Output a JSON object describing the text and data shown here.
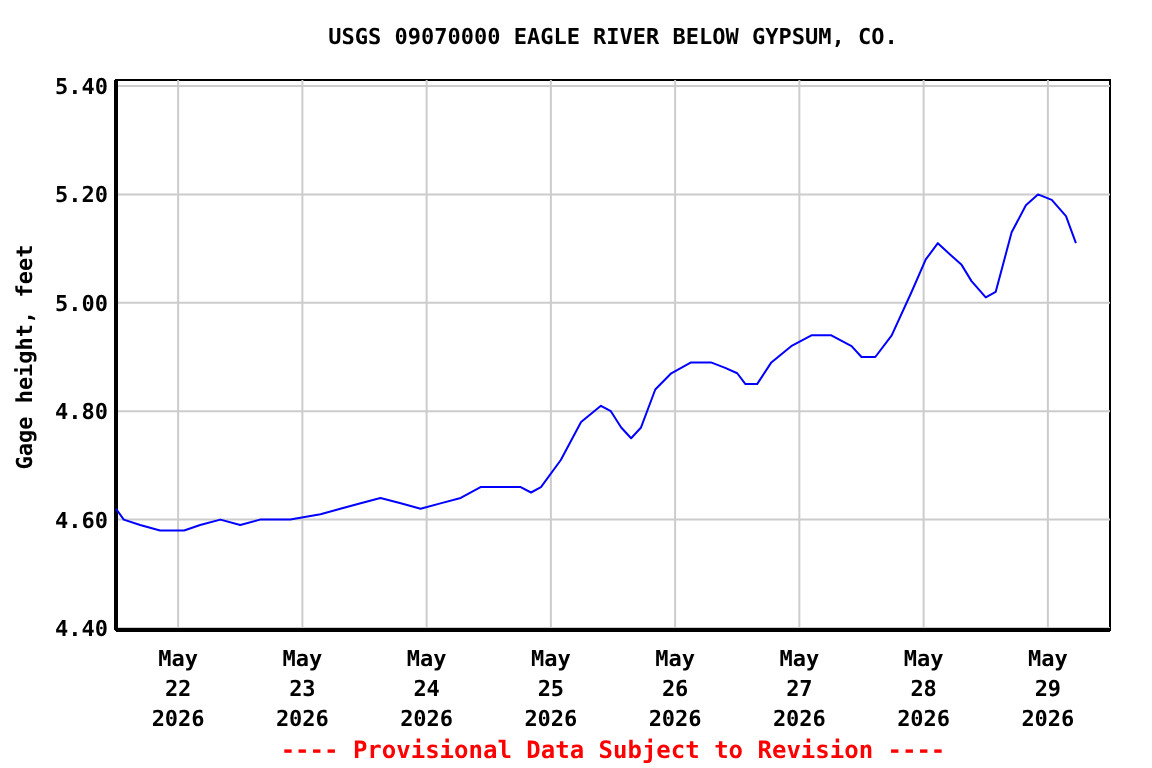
{
  "chart_data": {
    "type": "line",
    "title": "USGS 09070000 EAGLE RIVER BELOW GYPSUM, CO.",
    "ylabel": "Gage height, feet",
    "annotations": [
      "---- Provisional Data Subject to Revision ----"
    ],
    "x": [
      "2026-05-21T12:00",
      "2026-05-21T13:30",
      "2026-05-21T16:40",
      "2026-05-21T20:30",
      "2026-05-22T01:10",
      "2026-05-22T04:15",
      "2026-05-22T08:10",
      "2026-05-22T12:00",
      "2026-05-22T15:50",
      "2026-05-22T21:40",
      "2026-05-23T03:30",
      "2026-05-23T07:20",
      "2026-05-23T11:15",
      "2026-05-23T15:05",
      "2026-05-23T19:00",
      "2026-05-23T22:50",
      "2026-05-24T02:40",
      "2026-05-24T06:35",
      "2026-05-24T10:25",
      "2026-05-24T14:20",
      "2026-05-24T18:10",
      "2026-05-24T20:10",
      "2026-05-24T22:05",
      "2026-05-25T01:55",
      "2026-05-25T05:50",
      "2026-05-25T09:40",
      "2026-05-25T11:35",
      "2026-05-25T13:35",
      "2026-05-25T15:30",
      "2026-05-25T17:25",
      "2026-05-25T20:10",
      "2026-05-25T23:15",
      "2026-05-26T03:05",
      "2026-05-26T06:55",
      "2026-05-26T09:40",
      "2026-05-26T12:00",
      "2026-05-26T13:35",
      "2026-05-26T15:50",
      "2026-05-26T18:35",
      "2026-05-26T22:25",
      "2026-05-27T02:20",
      "2026-05-27T06:10",
      "2026-05-27T10:05",
      "2026-05-27T12:00",
      "2026-05-27T14:40",
      "2026-05-27T17:50",
      "2026-05-27T21:40",
      "2026-05-28T00:25",
      "2026-05-28T02:45",
      "2026-05-28T05:00",
      "2026-05-28T07:20",
      "2026-05-28T09:15",
      "2026-05-28T12:00",
      "2026-05-28T13:55",
      "2026-05-28T17:00",
      "2026-05-28T19:45",
      "2026-05-28T22:05",
      "2026-05-29T00:45",
      "2026-05-29T03:30",
      "2026-05-29T05:25"
    ],
    "series": [
      {
        "color": "#0000ff",
        "values": [
          4.62,
          4.6,
          4.59,
          4.58,
          4.58,
          4.59,
          4.6,
          4.59,
          4.6,
          4.6,
          4.61,
          4.62,
          4.63,
          4.64,
          4.63,
          4.62,
          4.63,
          4.64,
          4.66,
          4.66,
          4.66,
          4.65,
          4.66,
          4.71,
          4.78,
          4.81,
          4.8,
          4.77,
          4.75,
          4.77,
          4.84,
          4.87,
          4.89,
          4.89,
          4.88,
          4.87,
          4.85,
          4.85,
          4.89,
          4.92,
          4.94,
          4.94,
          4.92,
          4.9,
          4.9,
          4.94,
          5.02,
          5.08,
          5.11,
          5.09,
          5.07,
          5.04,
          5.01,
          5.02,
          5.13,
          5.18,
          5.2,
          5.19,
          5.16,
          5.11
        ]
      }
    ],
    "xlim": [
      "2026-05-21T12:00",
      "2026-05-29T12:00"
    ],
    "xticks": [
      {
        "value": "2026-05-22",
        "label": "May 22 2026"
      },
      {
        "value": "2026-05-23",
        "label": "May 23 2026"
      },
      {
        "value": "2026-05-24",
        "label": "May 24 2026"
      },
      {
        "value": "2026-05-25",
        "label": "May 25 2026"
      },
      {
        "value": "2026-05-26",
        "label": "May 26 2026"
      },
      {
        "value": "2026-05-27",
        "label": "May 27 2026"
      },
      {
        "value": "2026-05-28",
        "label": "May 28 2026"
      },
      {
        "value": "2026-05-29",
        "label": "May 29 2026"
      }
    ],
    "ylim": [
      4.4,
      5.4
    ],
    "yticks": [
      {
        "value": 4.4,
        "label": "4.40"
      },
      {
        "value": 4.6,
        "label": "4.60"
      },
      {
        "value": 4.8,
        "label": "4.80"
      },
      {
        "value": 5.0,
        "label": "5.00"
      },
      {
        "value": 5.2,
        "label": "5.20"
      },
      {
        "value": 5.4,
        "label": "5.40"
      }
    ],
    "grid": true
  }
}
